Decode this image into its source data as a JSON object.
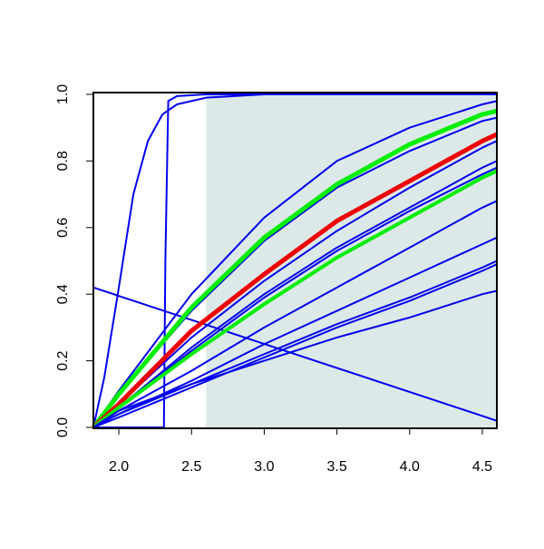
{
  "chart_data": {
    "type": "line",
    "xlim": [
      1.825,
      4.6
    ],
    "ylim": [
      0,
      1
    ],
    "xticks": [
      {
        "value": 2,
        "label": "2.0"
      },
      2.5,
      {
        "value": 3,
        "label": "3.0"
      },
      3.5,
      {
        "value": 4,
        "label": "4.0"
      },
      4.5
    ],
    "yticks": [
      {
        "value": 0,
        "label": "0.0"
      },
      0.2,
      0.4,
      0.6,
      0.8,
      {
        "value": 1,
        "label": "1.0"
      }
    ],
    "shaded_region": {
      "x": [
        2.6,
        4.6
      ],
      "y": [
        0,
        1
      ],
      "color": "#dde9e9"
    },
    "series": [
      {
        "color": "#0000ee",
        "width": 2,
        "x": [
          1.825,
          1.9,
          2.0,
          2.1,
          2.2,
          2.3,
          2.4,
          2.6,
          3.0,
          4.6
        ],
        "values": [
          0,
          0.15,
          0.42,
          0.7,
          0.86,
          0.94,
          0.97,
          0.99,
          1.0,
          1.0
        ]
      },
      {
        "color": "#0000ee",
        "width": 2,
        "x": [
          1.825,
          2.31,
          2.32,
          2.34,
          2.4,
          2.6,
          4.6
        ],
        "values": [
          0,
          0,
          0.5,
          0.98,
          0.995,
          1.0,
          1.0
        ]
      },
      {
        "color": "#0000ee",
        "width": 2,
        "x": [
          1.825,
          4.6
        ],
        "values": [
          0.42,
          0.02
        ]
      },
      {
        "color": "#0000ee",
        "width": 2,
        "x": [
          1.825,
          2.0,
          2.5,
          3.0,
          3.5,
          4.0,
          4.5,
          4.6
        ],
        "values": [
          0,
          0.11,
          0.4,
          0.63,
          0.8,
          0.9,
          0.97,
          0.98
        ]
      },
      {
        "color": "#0000ee",
        "width": 2,
        "x": [
          1.825,
          2.0,
          2.5,
          3.0,
          3.5,
          4.0,
          4.5,
          4.6
        ],
        "values": [
          0,
          0.1,
          0.35,
          0.56,
          0.72,
          0.83,
          0.92,
          0.93
        ]
      },
      {
        "color": "#00ee00",
        "width": 5,
        "x": [
          1.825,
          2.0,
          2.5,
          3.0,
          3.5,
          4.0,
          4.5,
          4.6
        ],
        "values": [
          0,
          0.1,
          0.36,
          0.57,
          0.73,
          0.85,
          0.94,
          0.95
        ]
      },
      {
        "color": "#0000ee",
        "width": 2,
        "x": [
          1.825,
          2.0,
          2.5,
          3.0,
          3.5,
          4.0,
          4.5,
          4.6
        ],
        "values": [
          0,
          0.07,
          0.27,
          0.44,
          0.59,
          0.72,
          0.84,
          0.86
        ]
      },
      {
        "color": "#ee0000",
        "width": 5,
        "x": [
          1.825,
          2.0,
          2.5,
          3.0,
          3.5,
          4.0,
          4.5,
          4.6
        ],
        "values": [
          0,
          0.07,
          0.29,
          0.46,
          0.62,
          0.74,
          0.86,
          0.88
        ]
      },
      {
        "color": "#0000ee",
        "width": 2,
        "x": [
          1.825,
          2.0,
          2.5,
          3.0,
          3.5,
          4.0,
          4.5,
          4.6
        ],
        "values": [
          0,
          0.06,
          0.24,
          0.4,
          0.54,
          0.66,
          0.78,
          0.8
        ]
      },
      {
        "color": "#0000ee",
        "width": 2,
        "x": [
          1.825,
          2.0,
          2.5,
          3.0,
          3.5,
          4.0,
          4.5,
          4.6
        ],
        "values": [
          0,
          0.06,
          0.23,
          0.39,
          0.53,
          0.65,
          0.76,
          0.78
        ]
      },
      {
        "color": "#00ee00",
        "width": 4,
        "x": [
          1.825,
          2.0,
          2.5,
          3.0,
          3.5,
          4.0,
          4.5,
          4.6
        ],
        "values": [
          0,
          0.06,
          0.22,
          0.37,
          0.51,
          0.63,
          0.75,
          0.77
        ]
      },
      {
        "color": "#0000ee",
        "width": 2,
        "x": [
          1.825,
          2.0,
          2.5,
          3.0,
          3.5,
          4.0,
          4.5,
          4.6
        ],
        "values": [
          0,
          0.05,
          0.17,
          0.3,
          0.42,
          0.54,
          0.66,
          0.68
        ]
      },
      {
        "color": "#0000ee",
        "width": 2,
        "x": [
          1.825,
          2.0,
          2.5,
          3.0,
          3.5,
          4.0,
          4.5,
          4.6
        ],
        "values": [
          0,
          0.04,
          0.14,
          0.25,
          0.35,
          0.45,
          0.55,
          0.57
        ]
      },
      {
        "color": "#0000ee",
        "width": 2,
        "x": [
          1.825,
          2.0,
          2.5,
          3.0,
          3.5,
          4.0,
          4.5,
          4.6
        ],
        "values": [
          0,
          0.04,
          0.13,
          0.22,
          0.31,
          0.39,
          0.48,
          0.5
        ]
      },
      {
        "color": "#0000ee",
        "width": 2,
        "x": [
          1.825,
          2.0,
          2.5,
          3.0,
          3.5,
          4.0,
          4.5,
          4.6
        ],
        "values": [
          0,
          0.03,
          0.12,
          0.21,
          0.3,
          0.38,
          0.47,
          0.49
        ]
      },
      {
        "color": "#0000ee",
        "width": 2,
        "x": [
          1.825,
          2.0,
          2.5,
          3.0,
          3.5,
          4.0,
          4.5,
          4.6
        ],
        "values": [
          0,
          0.05,
          0.13,
          0.2,
          0.27,
          0.33,
          0.4,
          0.41
        ]
      }
    ]
  }
}
